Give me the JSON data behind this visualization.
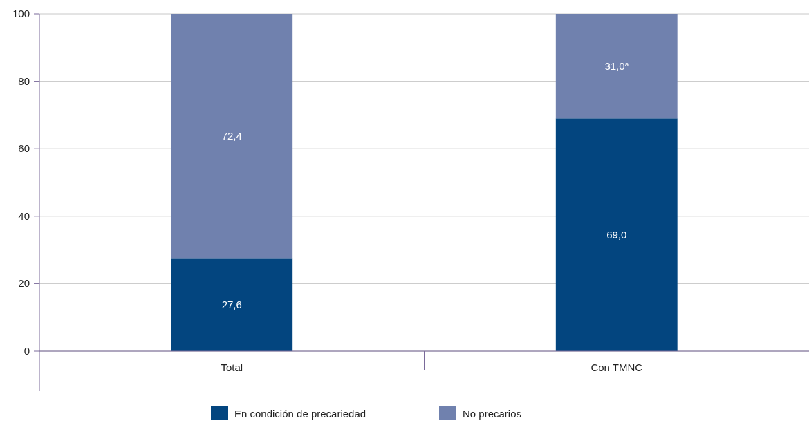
{
  "chart_data": {
    "type": "bar",
    "stacked": true,
    "categories": [
      "Total",
      "Con TMNC"
    ],
    "series": [
      {
        "name": "En condición de precariedad",
        "color": "#03457f",
        "values": [
          27.6,
          69.0
        ],
        "value_labels": [
          "27,6",
          "69,0"
        ]
      },
      {
        "name": "No precarios",
        "color": "#7081ae",
        "values": [
          72.4,
          31.0
        ],
        "value_labels": [
          "72,4",
          "31,0$^{a}$"
        ]
      }
    ],
    "ylim": [
      0,
      100
    ],
    "yticks": [
      0,
      20,
      40,
      60,
      80,
      100
    ],
    "grid": "y",
    "legend": "bottom"
  }
}
